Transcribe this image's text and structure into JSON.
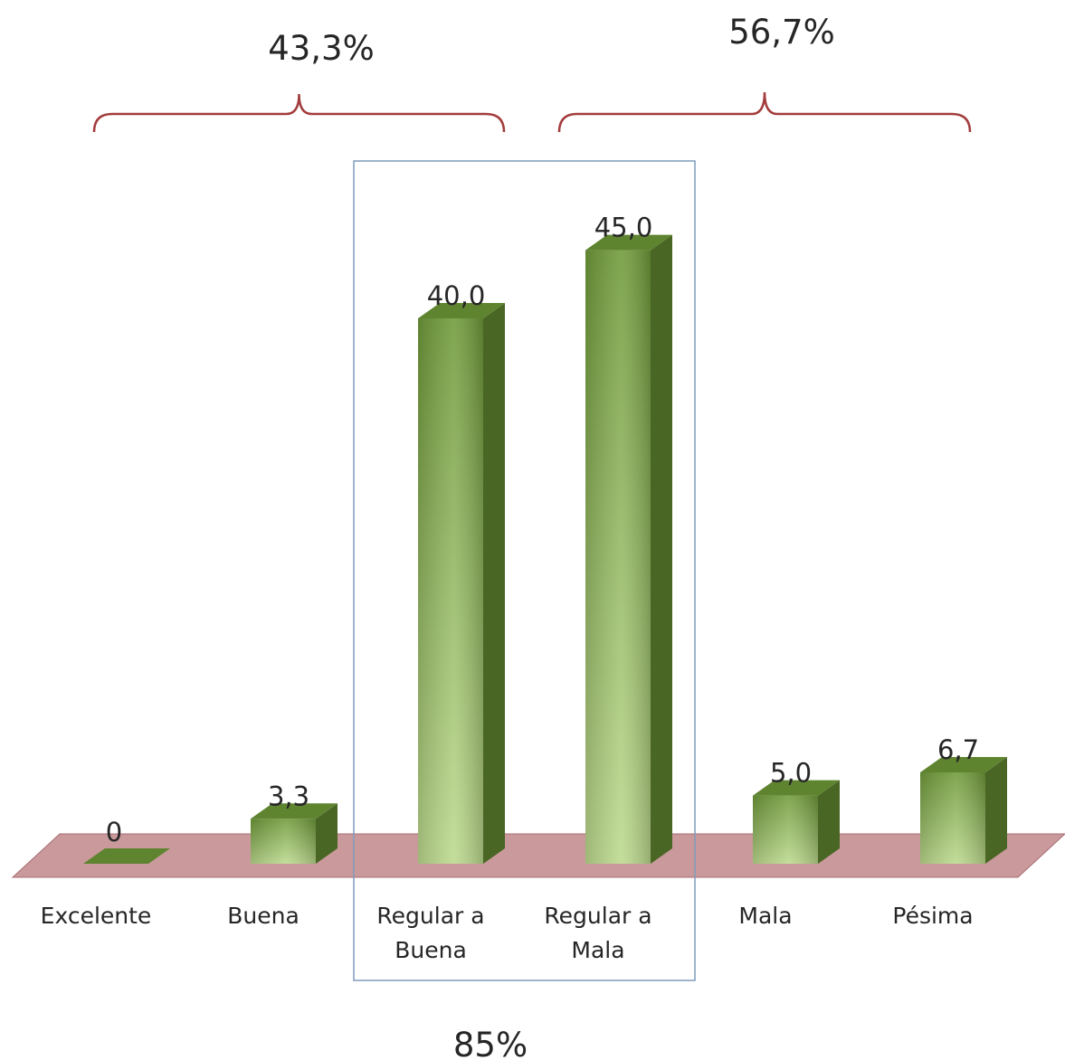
{
  "chart_data": {
    "type": "bar",
    "categories": [
      "Excelente",
      "Buena",
      "Regular a Buena",
      "Regular a Mala",
      "Mala",
      "Pésima"
    ],
    "category_lines": [
      [
        "Excelente"
      ],
      [
        "Buena"
      ],
      [
        "Regular a",
        "Buena"
      ],
      [
        "Regular a",
        "Mala"
      ],
      [
        "Mala"
      ],
      [
        "Pésima"
      ]
    ],
    "values": [
      0,
      3.3,
      40.0,
      45.0,
      5.0,
      6.7
    ],
    "value_labels": [
      "0",
      "3,3",
      "40,0",
      "45,0",
      "5,0",
      "6,7"
    ],
    "ylim": [
      0,
      45
    ],
    "grid": false,
    "legend": false,
    "colors": {
      "bar_front_light": "#bcd98e",
      "bar_front_dark": "#6f9a3a",
      "bar_side": "#4a6624",
      "bar_top": "#5f8430",
      "floor": "#c0878b",
      "bracket": "#a33c3c",
      "highlight_box": "#7f9cbb"
    },
    "groups": [
      {
        "label": "43,3%",
        "categories": [
          "Excelente",
          "Buena",
          "Regular a Buena"
        ]
      },
      {
        "label": "56,7%",
        "categories": [
          "Regular a Mala",
          "Mala",
          "Pésima"
        ]
      }
    ],
    "highlight": {
      "label": "85%",
      "categories": [
        "Regular a Buena",
        "Regular a Mala"
      ]
    }
  }
}
